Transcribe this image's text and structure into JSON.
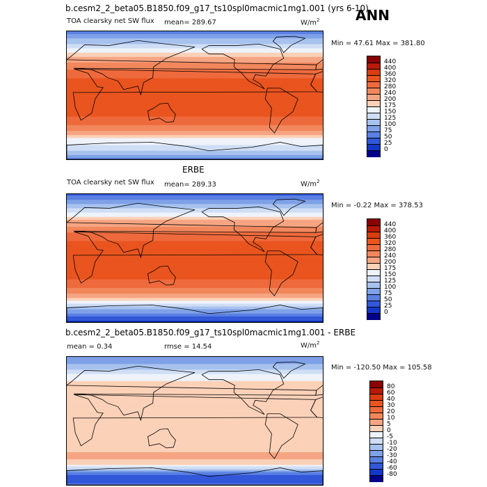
{
  "header": {
    "case_title": "b.cesm2_2_beta05.B1850.f09_g17_ts10spl0macmic1mg1.001 (yrs 6-10)",
    "season": "ANN"
  },
  "panels": [
    {
      "id": "model",
      "section_title": "",
      "variable": "TOA clearsky net SW flux",
      "stat1": "mean= 289.67",
      "stat2": "",
      "units": "W/m",
      "units_sup": "2",
      "minmax": "Min =   47.61  Max = 381.80"
    },
    {
      "id": "obs",
      "section_title": "ERBE",
      "variable": "TOA clearsky net SW flux",
      "stat1": "mean= 289.33",
      "stat2": "",
      "units": "W/m",
      "units_sup": "2",
      "minmax": "Min =   -0.22  Max = 378.53"
    },
    {
      "id": "diff",
      "section_title": "b.cesm2_2_beta05.B1850.f09_g17_ts10spl0macmic1mg1.001 - ERBE",
      "variable": "",
      "stat1": "mean =    0.34",
      "stat2": "rmse =   14.54",
      "units": "W/m",
      "units_sup": "2",
      "minmax": "Min = -120.50  Max = 105.58"
    }
  ],
  "chart_data": [
    {
      "type": "heatmap",
      "title": "TOA clearsky net SW flux",
      "mean": 289.67,
      "min": 47.61,
      "max": 381.8,
      "colorbar": {
        "levels": [
          "440",
          "400",
          "360",
          "320",
          "280",
          "240",
          "200",
          "175",
          "150",
          "125",
          "100",
          "75",
          "50",
          "25",
          "0"
        ],
        "colors": [
          "#8b0000",
          "#b81a08",
          "#d93d10",
          "#e9541f",
          "#ee6a3c",
          "#f2875c",
          "#f6a583",
          "#fbd1b8",
          "#eef3fb",
          "#cfdef5",
          "#a8c2ee",
          "#7ea1e8",
          "#5a80e2",
          "#3257d9",
          "#1237c9",
          "#00008a"
        ]
      },
      "profile": [
        [
          -90,
          60
        ],
        [
          -80,
          120
        ],
        [
          -70,
          150
        ],
        [
          -60,
          175
        ],
        [
          -50,
          240
        ],
        [
          -40,
          290
        ],
        [
          -30,
          320
        ],
        [
          -20,
          345
        ],
        [
          -10,
          350
        ],
        [
          0,
          345
        ],
        [
          10,
          345
        ],
        [
          20,
          330
        ],
        [
          30,
          300
        ],
        [
          40,
          260
        ],
        [
          50,
          220
        ],
        [
          60,
          175
        ],
        [
          70,
          130
        ],
        [
          80,
          100
        ],
        [
          90,
          60
        ]
      ]
    },
    {
      "type": "heatmap",
      "title": "ERBE",
      "mean": 289.33,
      "min": -0.22,
      "max": 378.53,
      "colorbar": {
        "levels": [
          "440",
          "400",
          "360",
          "320",
          "280",
          "240",
          "200",
          "175",
          "150",
          "125",
          "100",
          "75",
          "50",
          "25",
          "0"
        ],
        "colors": [
          "#8b0000",
          "#b81a08",
          "#d93d10",
          "#e9541f",
          "#ee6a3c",
          "#f2875c",
          "#f6a583",
          "#fbd1b8",
          "#eef3fb",
          "#cfdef5",
          "#a8c2ee",
          "#7ea1e8",
          "#5a80e2",
          "#3257d9",
          "#1237c9",
          "#00008a"
        ]
      },
      "profile": [
        [
          -90,
          10
        ],
        [
          -80,
          60
        ],
        [
          -70,
          110
        ],
        [
          -60,
          170
        ],
        [
          -50,
          240
        ],
        [
          -40,
          290
        ],
        [
          -30,
          320
        ],
        [
          -20,
          345
        ],
        [
          -10,
          352
        ],
        [
          0,
          345
        ],
        [
          10,
          345
        ],
        [
          20,
          330
        ],
        [
          30,
          300
        ],
        [
          40,
          260
        ],
        [
          50,
          215
        ],
        [
          60,
          170
        ],
        [
          70,
          120
        ],
        [
          80,
          80
        ],
        [
          90,
          40
        ]
      ]
    },
    {
      "type": "heatmap",
      "title": "b.cesm2_2_beta05.B1850.f09_g17_ts10spl0macmic1mg1.001 - ERBE",
      "mean": 0.34,
      "rmse": 14.54,
      "min": -120.5,
      "max": 105.58,
      "colorbar": {
        "levels": [
          "80",
          "60",
          "40",
          "30",
          "20",
          "10",
          "5",
          "0",
          "-5",
          "-10",
          "-20",
          "-30",
          "-40",
          "-60",
          "-80"
        ],
        "colors": [
          "#8b0000",
          "#b81a08",
          "#d93d10",
          "#e9541f",
          "#ee6a3c",
          "#f2875c",
          "#f6a583",
          "#fbd1b8",
          "#eef3fb",
          "#cfdef5",
          "#a8c2ee",
          "#7ea1e8",
          "#5a80e2",
          "#3257d9",
          "#1237c9",
          "#00008a"
        ]
      },
      "profile": [
        [
          -90,
          -30
        ],
        [
          -82,
          -60
        ],
        [
          -75,
          -40
        ],
        [
          -68,
          -10
        ],
        [
          -60,
          3
        ],
        [
          -50,
          6
        ],
        [
          -40,
          4
        ],
        [
          -30,
          3
        ],
        [
          -20,
          2
        ],
        [
          -10,
          4
        ],
        [
          0,
          3
        ],
        [
          10,
          4
        ],
        [
          20,
          3
        ],
        [
          30,
          4
        ],
        [
          40,
          5
        ],
        [
          50,
          3
        ],
        [
          60,
          -2
        ],
        [
          70,
          -8
        ],
        [
          80,
          -20
        ],
        [
          90,
          -25
        ]
      ]
    }
  ]
}
